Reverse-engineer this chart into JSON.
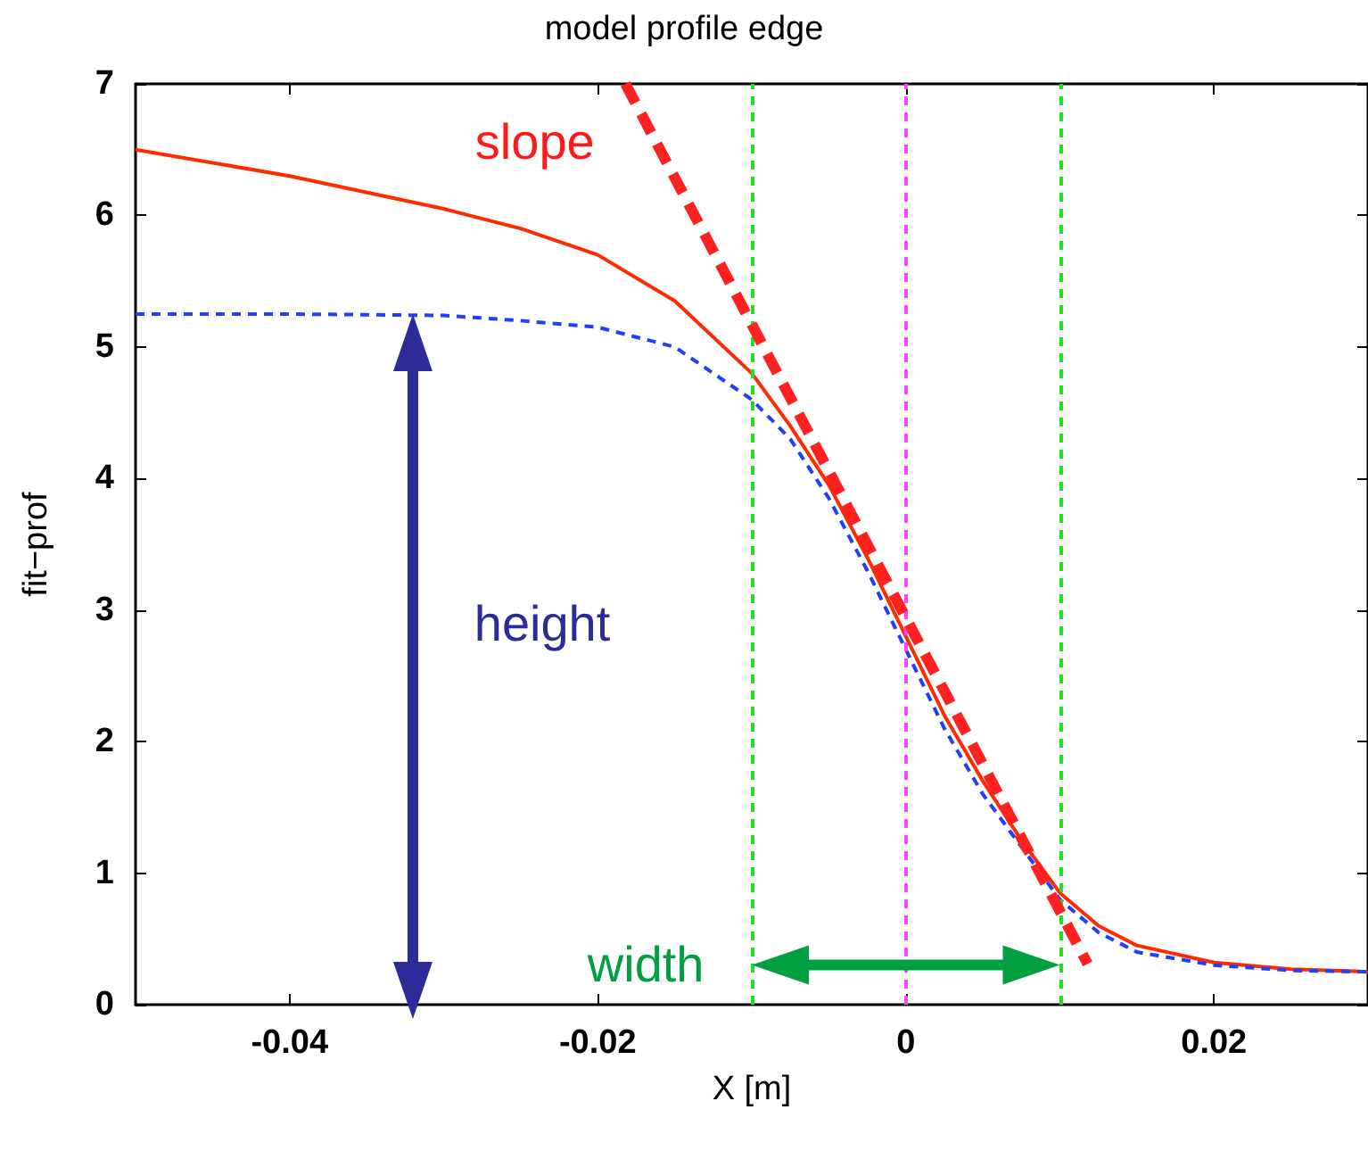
{
  "chart_data": {
    "type": "line",
    "title": "model profile edge",
    "xlabel": "X [m]",
    "ylabel": "fit−prof",
    "xlim": [
      -0.05,
      0.03
    ],
    "xticks": [
      -0.04,
      -0.02,
      0,
      0.02
    ],
    "ylim": [
      0,
      7
    ],
    "yticks": [
      0,
      1,
      2,
      3,
      4,
      5,
      6,
      7
    ],
    "grid": false,
    "marker": "none",
    "series": [
      {
        "color": "#ff2a00",
        "line_style": "solid",
        "x": [
          -0.05,
          -0.04,
          -0.03,
          -0.025,
          -0.02,
          -0.015,
          -0.01,
          -0.0075,
          -0.005,
          -0.0025,
          0,
          0.0025,
          0.005,
          0.0075,
          0.01,
          0.0125,
          0.015,
          0.02,
          0.025,
          0.03
        ],
        "values": [
          6.5,
          6.3,
          6.05,
          5.9,
          5.7,
          5.35,
          4.8,
          4.4,
          3.95,
          3.4,
          2.8,
          2.2,
          1.7,
          1.25,
          0.85,
          0.6,
          0.45,
          0.32,
          0.27,
          0.25
        ]
      },
      {
        "color": "#1f3fff",
        "line_style": "dashed",
        "x": [
          -0.05,
          -0.04,
          -0.03,
          -0.025,
          -0.02,
          -0.015,
          -0.01,
          -0.0075,
          -0.005,
          -0.0025,
          0,
          0.0025,
          0.005,
          0.0075,
          0.01,
          0.0125,
          0.015,
          0.02,
          0.025,
          0.03
        ],
        "values": [
          5.25,
          5.25,
          5.24,
          5.2,
          5.15,
          5.0,
          4.6,
          4.3,
          3.85,
          3.3,
          2.7,
          2.1,
          1.6,
          1.2,
          0.8,
          0.55,
          0.4,
          0.3,
          0.26,
          0.25
        ]
      },
      {
        "color": "#ff2020",
        "line_style": "dashed",
        "x": [
          -0.0182,
          0.0118
        ],
        "values": [
          7,
          0.31
        ]
      }
    ],
    "ref_lines": [
      {
        "axis": "x",
        "value": -0.01,
        "color": "#22dd22",
        "line_style": "dashed"
      },
      {
        "axis": "x",
        "value": 0,
        "color": "#ff44ff",
        "line_style": "dashed"
      },
      {
        "axis": "x",
        "value": 0.01,
        "color": "#22dd22",
        "line_style": "dashed"
      }
    ],
    "annotations": [
      "slope",
      "height",
      "width"
    ]
  }
}
